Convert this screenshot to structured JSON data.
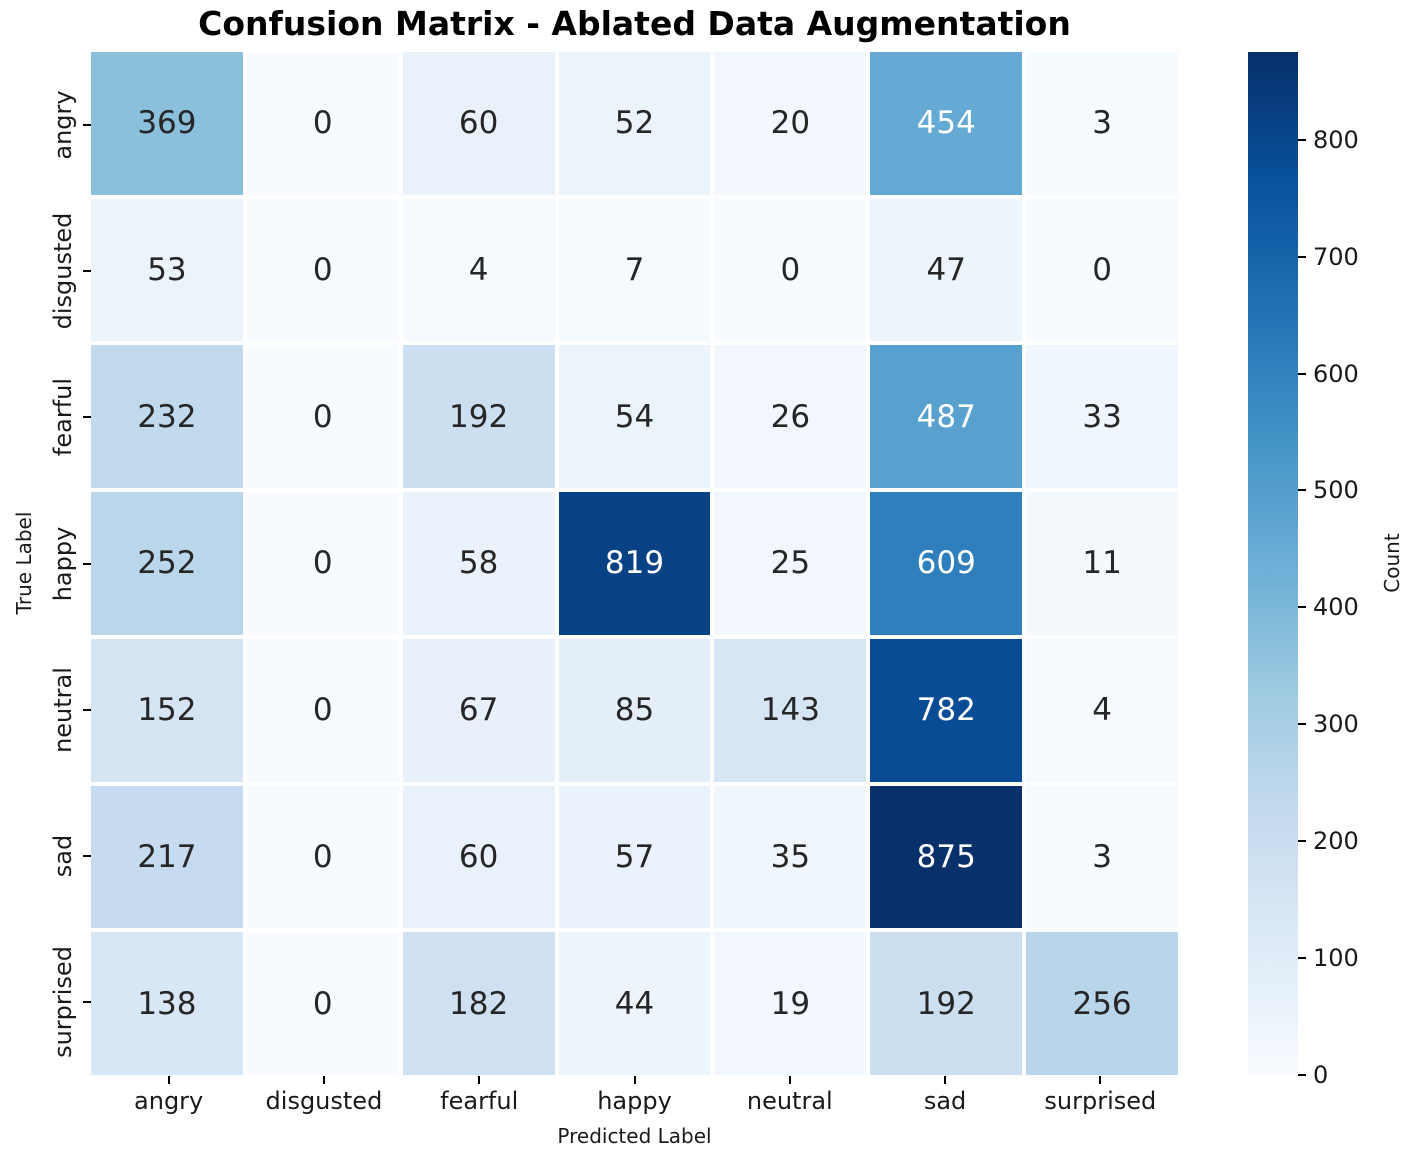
{
  "chart_data": {
    "type": "heatmap",
    "title": "Confusion Matrix - Ablated Data Augmentation",
    "xlabel": "Predicted Label",
    "ylabel": "True Label",
    "x_categories": [
      "angry",
      "disgusted",
      "fearful",
      "happy",
      "neutral",
      "sad",
      "surprised"
    ],
    "y_categories": [
      "angry",
      "disgusted",
      "fearful",
      "happy",
      "neutral",
      "sad",
      "surprised"
    ],
    "matrix": [
      [
        369,
        0,
        60,
        52,
        20,
        454,
        3
      ],
      [
        53,
        0,
        4,
        7,
        0,
        47,
        0
      ],
      [
        232,
        0,
        192,
        54,
        26,
        487,
        33
      ],
      [
        252,
        0,
        58,
        819,
        25,
        609,
        11
      ],
      [
        152,
        0,
        67,
        85,
        143,
        782,
        4
      ],
      [
        217,
        0,
        60,
        57,
        35,
        875,
        3
      ],
      [
        138,
        0,
        182,
        44,
        19,
        192,
        256
      ]
    ],
    "colorbar": {
      "label": "Count",
      "ticks": [
        0,
        100,
        200,
        300,
        400,
        500,
        600,
        700,
        800
      ],
      "vmin": 0,
      "vmax": 875
    },
    "colormap": {
      "name": "Blues",
      "stops": [
        [
          0.0,
          "#f7fbff"
        ],
        [
          0.125,
          "#deebf7"
        ],
        [
          0.25,
          "#c6dbef"
        ],
        [
          0.375,
          "#9ecae1"
        ],
        [
          0.5,
          "#6baed6"
        ],
        [
          0.625,
          "#4292c6"
        ],
        [
          0.75,
          "#2171b5"
        ],
        [
          0.875,
          "#08519c"
        ],
        [
          1.0,
          "#08306b"
        ]
      ]
    },
    "annotation_colors": {
      "dark": "#262626",
      "light": "#ffffff"
    },
    "legend_position": "right-colorbar",
    "grid": false
  }
}
